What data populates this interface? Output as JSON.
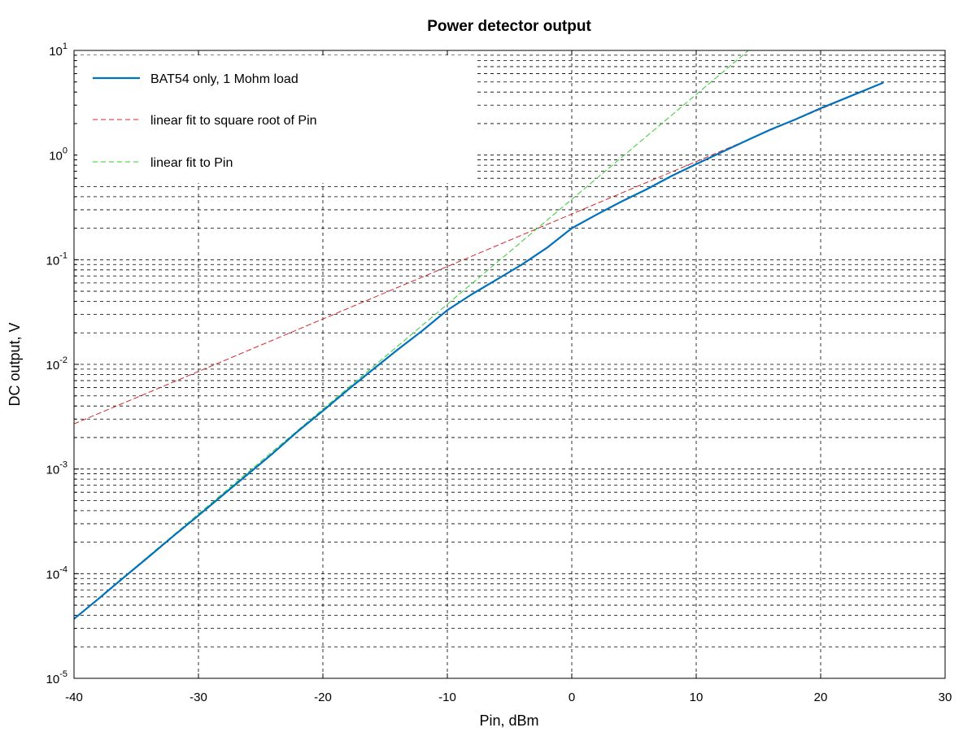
{
  "chart_data": {
    "type": "line",
    "title": "Power detector output",
    "xlabel": "Pin, dBm",
    "ylabel": "DC output, V",
    "xlim": [
      -40,
      30
    ],
    "ylim": [
      1e-05,
      10
    ],
    "yscale": "log",
    "grid": true,
    "legend_position": "top-left",
    "x_ticks": [
      -40,
      -30,
      -20,
      -10,
      0,
      10,
      20,
      30
    ],
    "x_tick_labels": [
      "-40",
      "-30",
      "-20",
      "-10",
      "0",
      "10",
      "20",
      "30"
    ],
    "y_ticks": [
      {
        "value": 1e-05,
        "base": "10",
        "exp": "-5"
      },
      {
        "value": 0.0001,
        "base": "10",
        "exp": "-4"
      },
      {
        "value": 0.001,
        "base": "10",
        "exp": "-3"
      },
      {
        "value": 0.01,
        "base": "10",
        "exp": "-2"
      },
      {
        "value": 0.1,
        "base": "10",
        "exp": "-1"
      },
      {
        "value": 1,
        "base": "10",
        "exp": "0"
      },
      {
        "value": 10,
        "base": "10",
        "exp": "1"
      }
    ],
    "series": [
      {
        "name": "BAT54 only, 1 Mohm load",
        "color": "#0072bd",
        "style": "solid",
        "x": [
          -40,
          -38,
          -36,
          -34,
          -32,
          -30,
          -28,
          -26,
          -24,
          -22,
          -20,
          -18,
          -16,
          -14,
          -12,
          -10,
          -8,
          -6,
          -4,
          -2,
          0,
          2,
          4,
          6,
          8,
          10,
          12,
          14,
          16,
          18,
          20,
          22,
          25
        ],
        "y": [
          3.7e-05,
          5.8e-05,
          9.2e-05,
          0.000145,
          0.00023,
          0.00036,
          0.00057,
          0.0009,
          0.00142,
          0.0023,
          0.0036,
          0.0057,
          0.0089,
          0.0138,
          0.021,
          0.033,
          0.047,
          0.065,
          0.09,
          0.13,
          0.2,
          0.27,
          0.36,
          0.47,
          0.63,
          0.82,
          1.06,
          1.37,
          1.76,
          2.2,
          2.8,
          3.5,
          4.9
        ]
      },
      {
        "name": "linear fit to square root of Pin",
        "color": "#d62728",
        "style": "dashed",
        "x": [
          -40,
          25
        ],
        "y": [
          0.0027,
          4.9
        ]
      },
      {
        "name": "linear fit to Pin",
        "color": "#33cc33",
        "style": "dashed",
        "x": [
          -40,
          14.2
        ],
        "y": [
          3.7e-05,
          10
        ]
      }
    ]
  }
}
